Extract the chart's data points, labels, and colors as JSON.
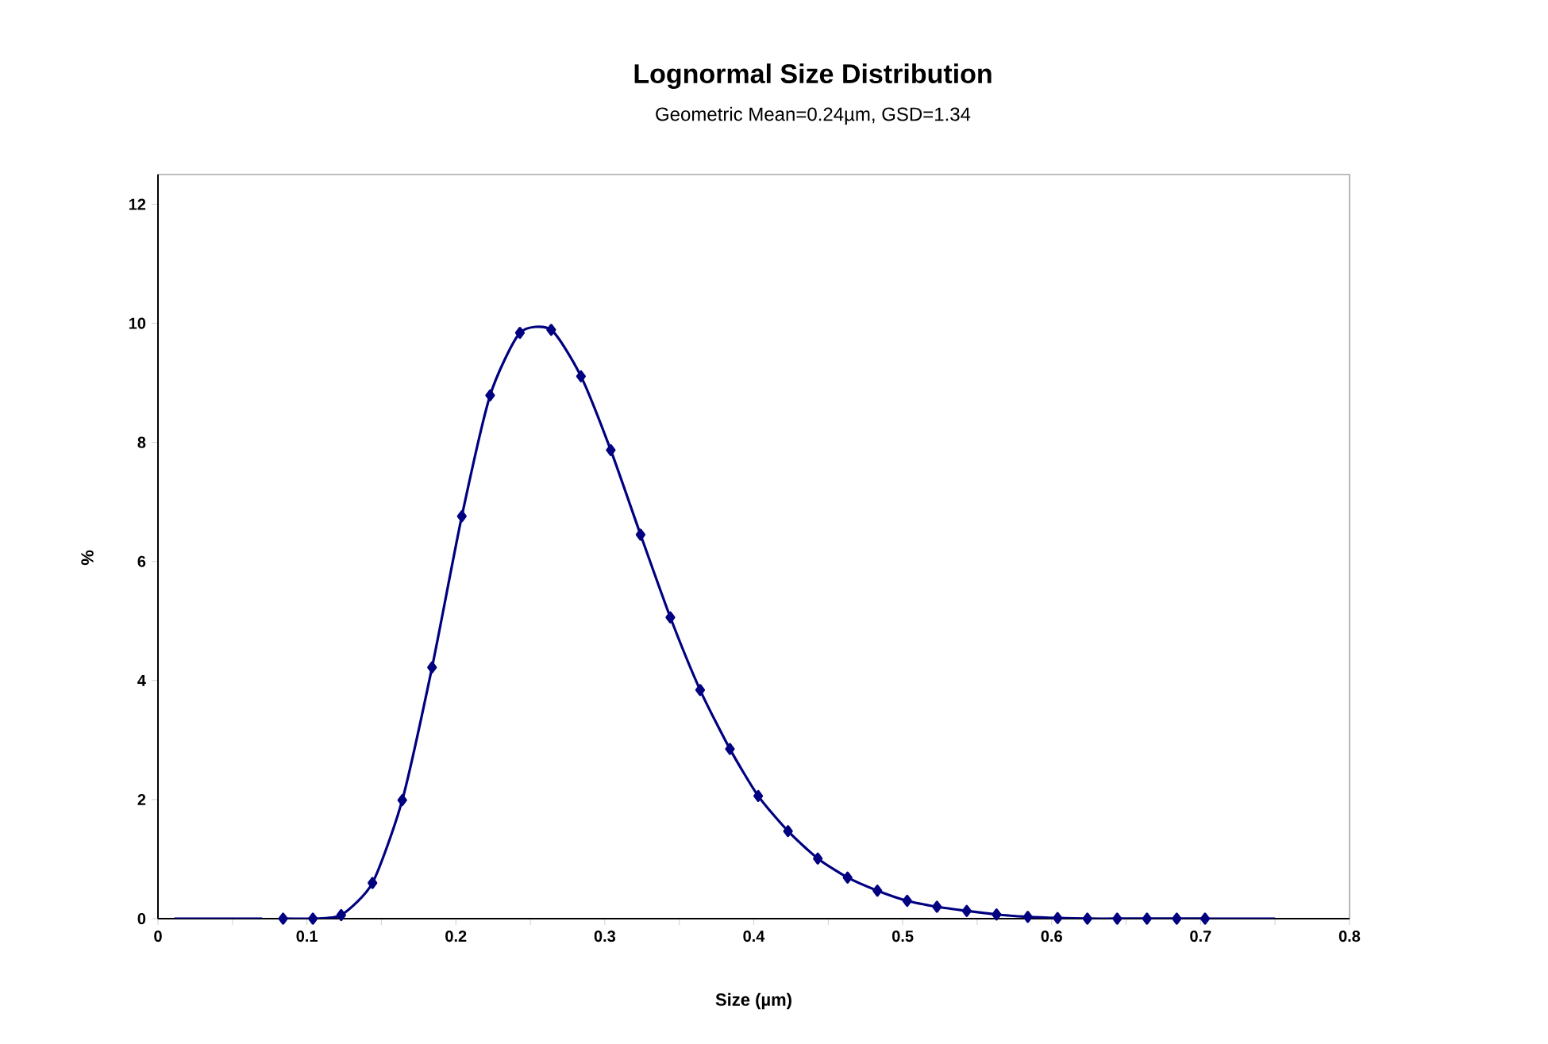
{
  "chart_data": {
    "type": "line",
    "title": "Lognormal Size Distribution",
    "subtitle": "Geometric Mean=0.24µm, GSD=1.34",
    "xlabel": "Size (µm)",
    "ylabel": "%",
    "xlim": [
      0,
      0.8
    ],
    "ylim": [
      0,
      12.5
    ],
    "xticks": [
      0,
      {
        "value": 0.05,
        "label": null
      },
      0.1,
      {
        "value": 0.15,
        "label": null
      },
      0.2,
      {
        "value": 0.25,
        "label": null
      },
      0.3,
      {
        "value": 0.35,
        "label": null
      },
      0.4,
      {
        "value": 0.45,
        "label": null
      },
      0.5,
      {
        "value": 0.55,
        "label": null
      },
      0.6,
      {
        "value": 0.65,
        "label": null
      },
      0.7,
      {
        "value": 0.75,
        "label": null
      },
      0.8
    ],
    "yticks": [
      0,
      2,
      4,
      6,
      8,
      10,
      12
    ],
    "line_style": "solid",
    "series": [
      {
        "color": "#000080",
        "marker": "diamond",
        "x": [
          0.084,
          0.104,
          0.123,
          0.144,
          0.164,
          0.184,
          0.204,
          0.223,
          0.243,
          0.264,
          0.284,
          0.304,
          0.324,
          0.344,
          0.364,
          0.384,
          0.403,
          0.423,
          0.443,
          0.463,
          0.483,
          0.503,
          0.523,
          0.543,
          0.563,
          0.584,
          0.604,
          0.624,
          0.644,
          0.664,
          0.684,
          0.703
        ],
        "values": [
          0,
          0,
          0.06,
          0.6,
          1.99,
          4.22,
          6.76,
          8.79,
          9.84,
          9.89,
          9.11,
          7.87,
          6.45,
          5.06,
          3.84,
          2.85,
          2.06,
          1.47,
          1.01,
          0.69,
          0.47,
          0.3,
          0.2,
          0.13,
          0.07,
          0.03,
          0.01,
          0,
          0,
          0,
          0,
          0
        ]
      },
      {
        "color": "#000080",
        "marker": "none",
        "x": [
          0.011,
          0.07
        ],
        "values": [
          0,
          0
        ]
      },
      {
        "color": "#000080",
        "marker": "none",
        "x": [
          0.703,
          0.75
        ],
        "values": [
          0,
          0
        ]
      }
    ]
  }
}
